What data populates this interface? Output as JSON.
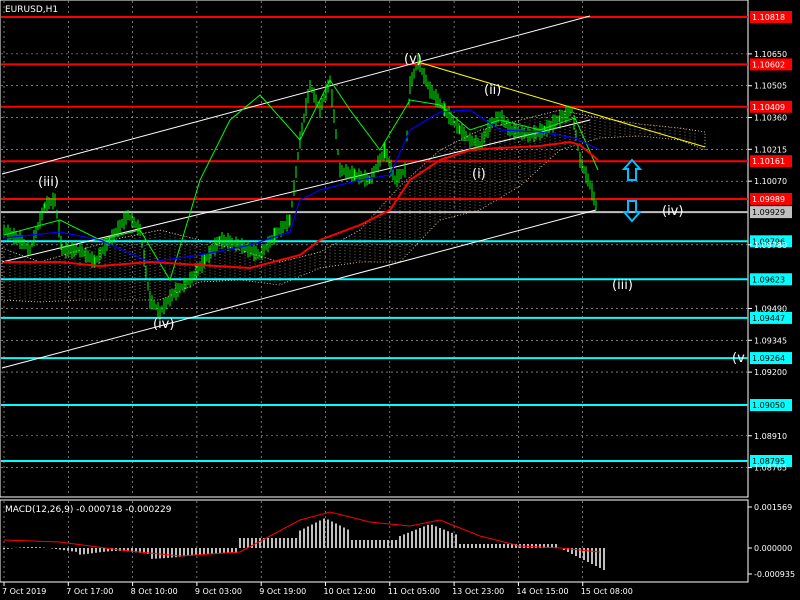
{
  "chart_title": "EURUSD,H1",
  "macd_label": "MACD(12,26,9) -0.000718 -0.000229",
  "colors": {
    "background": "#000000",
    "grid": "#c0c0c0",
    "resistance": "#ff0000",
    "support": "#00ffff",
    "price": "#00ff00",
    "ma_red": "#ff0000",
    "ma_blue": "#0000ff",
    "cloud": "#ffdab9",
    "channel": "#ffffff",
    "trendline": "#ffff00"
  },
  "chart_data": {
    "type": "line",
    "y_ticks": [
      "1.10650",
      "1.10505",
      "1.10360",
      "1.10215",
      "1.10070",
      "1.09780",
      "1.09490",
      "1.09345",
      "1.09200",
      "1.08910",
      "1.08765"
    ],
    "x_ticks": [
      "7 Oct 2019",
      "7 Oct 17:00",
      "8 Oct 10:00",
      "9 Oct 03:00",
      "9 Oct 19:00",
      "10 Oct 12:00",
      "11 Oct 05:00",
      "13 Oct 23:00",
      "14 Oct 15:00",
      "15 Oct 08:00"
    ],
    "resistance_levels": [
      {
        "label": "1.10818",
        "value": 1.10818
      },
      {
        "label": "1.10602",
        "value": 1.10602
      },
      {
        "label": "1.10409",
        "value": 1.10409
      },
      {
        "label": "1.10161",
        "value": 1.10161
      },
      {
        "label": "1.09989",
        "value": 1.09989
      }
    ],
    "current_price": {
      "label": "1.09929",
      "value": 1.09929
    },
    "support_levels": [
      {
        "label": "1.09796",
        "value": 1.09796
      },
      {
        "label": "1.09623",
        "value": 1.09623
      },
      {
        "label": "1.09447",
        "value": 1.09447
      },
      {
        "label": "1.09264",
        "value": 1.09264
      },
      {
        "label": "1.09050",
        "value": 1.0905
      },
      {
        "label": "1.08795",
        "value": 1.08795
      }
    ],
    "wave_labels": [
      "(iii)",
      "(iv)",
      "(v)",
      "(ii)",
      "(i)",
      "(iv)",
      "(iii)",
      "(v"
    ],
    "macd": {
      "y_ticks": [
        "0.001569",
        "0.000000",
        "-0.000935"
      ]
    }
  }
}
